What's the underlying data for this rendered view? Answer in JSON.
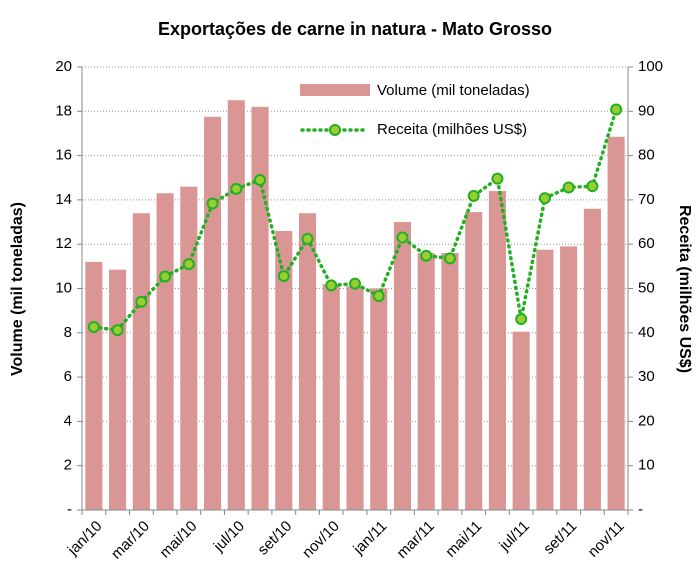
{
  "chart_data": {
    "type": "bar-line",
    "title": "Exportações de carne in natura - Mato Grosso",
    "y_label": "Volume (mil toneladas)",
    "y2_label": "Receita (milhões US$)",
    "categories": [
      "jan/10",
      null,
      "mar/10",
      null,
      "mai/10",
      null,
      "jul/10",
      null,
      "set/10",
      null,
      "nov/10",
      null,
      "jan/11",
      null,
      "mar/11",
      null,
      "mai/11",
      null,
      "jul/11",
      null,
      "set/11",
      null,
      "nov/11"
    ],
    "series": [
      {
        "name": "Volume (mil toneladas)",
        "type": "bar",
        "color": "#d99694",
        "values": [
          11.2,
          10.85,
          13.4,
          14.3,
          14.6,
          17.75,
          18.5,
          18.2,
          12.6,
          13.4,
          10.2,
          10.1,
          10.0,
          13.0,
          11.6,
          11.6,
          13.45,
          14.4,
          8.05,
          11.75,
          11.9,
          13.6,
          16.85
        ]
      },
      {
        "name": "Receita (milhões US$)",
        "type": "line",
        "axis": "y2",
        "color": "#22b022",
        "marker_color": "#9acd32",
        "values": [
          41.3,
          40.6,
          47,
          52.7,
          55.5,
          69.2,
          72.5,
          74.5,
          52.8,
          61.2,
          50.7,
          51.1,
          48.3,
          61.5,
          57.4,
          56.8,
          70.9,
          74.8,
          43.1,
          70.4,
          72.8,
          73.1,
          90.4
        ]
      }
    ],
    "ylim": [
      0,
      20
    ],
    "yticks": [
      {
        "value": 0,
        "label": "-"
      },
      2,
      4,
      6,
      8,
      10,
      12,
      14,
      16,
      18,
      20
    ],
    "y2lim": [
      0,
      100
    ],
    "y2ticks": [
      {
        "value": 0,
        "label": "-"
      },
      10,
      20,
      30,
      40,
      50,
      60,
      70,
      80,
      90,
      100
    ],
    "grid": true,
    "legend": "top-right"
  }
}
